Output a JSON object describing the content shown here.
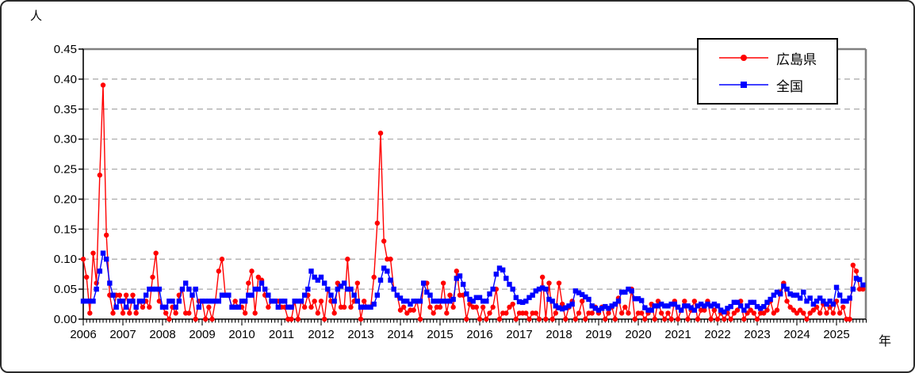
{
  "chart": {
    "unit_label": "人",
    "x_axis_label": "年",
    "legend_items": [
      {
        "label": "広島県",
        "color": "#FF0000",
        "marker": "circle"
      },
      {
        "label": "全国",
        "color": "#0000FF",
        "marker": "square"
      }
    ]
  },
  "chart_data": {
    "type": "line",
    "title": "",
    "ylabel": "人",
    "xlabel": "年",
    "ylim": [
      0,
      0.45
    ],
    "y_tick_labels": [
      "0.00",
      "0.05",
      "0.10",
      "0.15",
      "0.20",
      "0.25",
      "0.30",
      "0.35",
      "0.40",
      "0.45"
    ],
    "x_tick_labels": [
      "2006",
      "2007",
      "2008",
      "2009",
      "2010",
      "2011",
      "2012",
      "2013",
      "2014",
      "2015",
      "2016",
      "2017",
      "2018",
      "2019",
      "2020",
      "2021",
      "2022",
      "2023",
      "2024",
      "2025"
    ],
    "x_start_year": 2006,
    "points_per_year": 12,
    "grid": "horizontal-dashed",
    "grid_color": "#A6A6A6",
    "frame_color": "#808080",
    "axis_color": "#000000",
    "legend_position": "top-right",
    "series": [
      {
        "name": "広島県",
        "color": "#FF0000",
        "marker": "circle",
        "values": [
          0.1,
          0.07,
          0.01,
          0.11,
          0.06,
          0.24,
          0.39,
          0.14,
          0.04,
          0.01,
          0.04,
          0.04,
          0.01,
          0.04,
          0.01,
          0.04,
          0.01,
          0.03,
          0.02,
          0.03,
          0.02,
          0.07,
          0.11,
          0.03,
          0.02,
          0.01,
          0.0,
          0.02,
          0.01,
          0.04,
          0.05,
          0.01,
          0.01,
          0.04,
          0.0,
          0.03,
          0.03,
          0.0,
          0.02,
          0.0,
          0.03,
          0.08,
          0.1,
          0.04,
          0.04,
          0.02,
          0.03,
          0.02,
          0.02,
          0.01,
          0.06,
          0.08,
          0.01,
          0.07,
          0.065,
          0.04,
          0.02,
          0.03,
          0.03,
          0.03,
          0.02,
          0.02,
          0.0,
          0.0,
          0.03,
          0.0,
          0.03,
          0.02,
          0.04,
          0.02,
          0.03,
          0.01,
          0.03,
          0.0,
          0.05,
          0.03,
          0.01,
          0.06,
          0.02,
          0.02,
          0.1,
          0.02,
          0.03,
          0.06,
          0.0,
          0.03,
          0.02,
          0.02,
          0.07,
          0.16,
          0.31,
          0.13,
          0.1,
          0.1,
          0.05,
          0.04,
          0.015,
          0.02,
          0.01,
          0.015,
          0.015,
          0.03,
          0.0,
          0.06,
          0.06,
          0.02,
          0.01,
          0.02,
          0.02,
          0.06,
          0.01,
          0.04,
          0.02,
          0.08,
          0.04,
          0.04,
          0.0,
          0.025,
          0.02,
          0.02,
          0.0,
          0.02,
          0.0,
          0.01,
          0.02,
          0.05,
          0.0,
          0.01,
          0.01,
          0.02,
          0.025,
          0.0,
          0.01,
          0.01,
          0.01,
          0.0,
          0.01,
          0.01,
          0.0,
          0.07,
          0.0,
          0.06,
          0.0,
          0.01,
          0.06,
          0.025,
          0.0,
          0.02,
          0.03,
          0.0,
          0.01,
          0.03,
          0.0,
          0.01,
          0.01,
          0.02,
          0.01,
          0.02,
          0.0,
          0.01,
          0.02,
          0.0,
          0.035,
          0.01,
          0.02,
          0.01,
          0.05,
          0.0,
          0.01,
          0.01,
          0.0,
          0.01,
          0.025,
          0.0,
          0.03,
          0.01,
          0.0,
          0.01,
          0.0,
          0.03,
          0.0,
          0.015,
          0.03,
          0.0,
          0.015,
          0.03,
          0.0,
          0.015,
          0.015,
          0.03,
          0.0,
          0.015,
          0.0,
          0.01,
          0.0,
          0.01,
          0.0,
          0.01,
          0.015,
          0.03,
          0.0,
          0.01,
          0.015,
          0.01,
          0.0,
          0.01,
          0.01,
          0.015,
          0.03,
          0.01,
          0.015,
          0.045,
          0.06,
          0.03,
          0.02,
          0.015,
          0.01,
          0.015,
          0.01,
          0.0,
          0.01,
          0.015,
          0.02,
          0.01,
          0.025,
          0.01,
          0.02,
          0.01,
          0.03,
          0.01,
          0.02,
          0.0,
          0.0,
          0.09,
          0.08,
          0.05,
          0.05
        ]
      },
      {
        "name": "全国",
        "color": "#0000FF",
        "marker": "square",
        "values": [
          0.03,
          0.03,
          0.03,
          0.03,
          0.05,
          0.08,
          0.11,
          0.1,
          0.06,
          0.04,
          0.02,
          0.03,
          0.03,
          0.02,
          0.03,
          0.03,
          0.02,
          0.03,
          0.03,
          0.04,
          0.05,
          0.05,
          0.05,
          0.05,
          0.02,
          0.02,
          0.03,
          0.03,
          0.02,
          0.03,
          0.05,
          0.06,
          0.05,
          0.04,
          0.05,
          0.02,
          0.03,
          0.03,
          0.03,
          0.03,
          0.03,
          0.03,
          0.04,
          0.04,
          0.04,
          0.02,
          0.02,
          0.02,
          0.03,
          0.03,
          0.04,
          0.04,
          0.05,
          0.05,
          0.06,
          0.05,
          0.04,
          0.03,
          0.03,
          0.02,
          0.03,
          0.03,
          0.02,
          0.02,
          0.03,
          0.03,
          0.03,
          0.04,
          0.05,
          0.08,
          0.07,
          0.065,
          0.07,
          0.06,
          0.05,
          0.04,
          0.03,
          0.05,
          0.055,
          0.06,
          0.05,
          0.05,
          0.04,
          0.03,
          0.02,
          0.02,
          0.02,
          0.02,
          0.025,
          0.04,
          0.065,
          0.085,
          0.08,
          0.065,
          0.05,
          0.04,
          0.035,
          0.03,
          0.03,
          0.025,
          0.03,
          0.03,
          0.03,
          0.06,
          0.045,
          0.04,
          0.03,
          0.03,
          0.03,
          0.03,
          0.03,
          0.03,
          0.033,
          0.068,
          0.072,
          0.058,
          0.042,
          0.033,
          0.03,
          0.036,
          0.036,
          0.03,
          0.03,
          0.042,
          0.05,
          0.075,
          0.085,
          0.082,
          0.068,
          0.058,
          0.05,
          0.036,
          0.029,
          0.028,
          0.03,
          0.036,
          0.04,
          0.047,
          0.05,
          0.052,
          0.05,
          0.033,
          0.03,
          0.022,
          0.019,
          0.017,
          0.019,
          0.022,
          0.025,
          0.047,
          0.044,
          0.041,
          0.037,
          0.033,
          0.022,
          0.018,
          0.015,
          0.018,
          0.021,
          0.018,
          0.022,
          0.025,
          0.03,
          0.045,
          0.045,
          0.05,
          0.047,
          0.034,
          0.034,
          0.031,
          0.019,
          0.015,
          0.015,
          0.022,
          0.022,
          0.025,
          0.022,
          0.022,
          0.025,
          0.025,
          0.02,
          0.015,
          0.022,
          0.022,
          0.019,
          0.015,
          0.022,
          0.025,
          0.022,
          0.025,
          0.022,
          0.025,
          0.022,
          0.015,
          0.012,
          0.018,
          0.021,
          0.028,
          0.028,
          0.022,
          0.015,
          0.022,
          0.028,
          0.028,
          0.021,
          0.018,
          0.021,
          0.028,
          0.033,
          0.04,
          0.045,
          0.042,
          0.055,
          0.05,
          0.042,
          0.04,
          0.04,
          0.035,
          0.045,
          0.03,
          0.035,
          0.025,
          0.03,
          0.035,
          0.03,
          0.025,
          0.03,
          0.025,
          0.053,
          0.04,
          0.03,
          0.03,
          0.035,
          0.05,
          0.068,
          0.066,
          0.057
        ]
      }
    ]
  }
}
